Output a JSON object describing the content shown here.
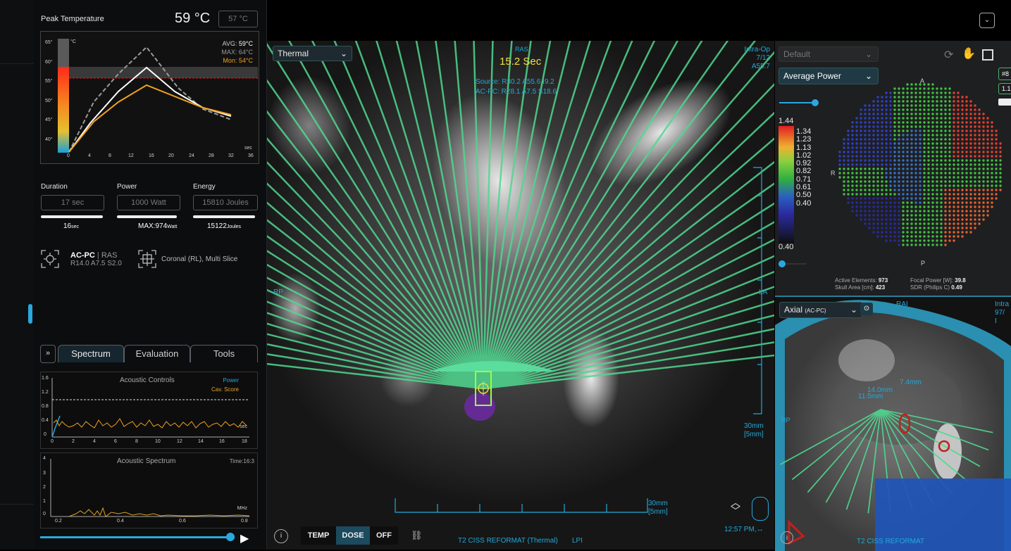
{
  "peak": {
    "title": "Peak Temperature",
    "value": "59 °C",
    "target": "57 °C",
    "avg_label": "AVG:",
    "avg": "59°C",
    "max_label": "MAX:",
    "max": "64°C",
    "mon_label": "Mon:",
    "mon": "54°C",
    "unit": "°C",
    "xunit": "sec",
    "yticks": [
      "65°",
      "60°",
      "55°",
      "50°",
      "45°",
      "40°"
    ],
    "xticks": [
      "0",
      "4",
      "8",
      "12",
      "16",
      "20",
      "24",
      "28",
      "32",
      "36"
    ]
  },
  "metrics": {
    "duration_label": "Duration",
    "duration_box": "17 sec",
    "duration_val": "16",
    "duration_unit": "sec",
    "power_label": "Power",
    "power_box": "1000 Watt",
    "power_val": "MAX:974",
    "power_unit": "Watt",
    "energy_label": "Energy",
    "energy_box": "15810 Joules",
    "energy_val": "15122",
    "energy_unit": "Joules"
  },
  "coords": {
    "acpc": "AC-PC",
    "ras": "RAS",
    "vals": "R14.0 A7.5 S2.0",
    "view": "Coronal (RL), Multi Slice"
  },
  "tabs": {
    "spectrum": "Spectrum",
    "evaluation": "Evaluation",
    "tools": "Tools"
  },
  "acoustic": {
    "title": "Acoustic Controls",
    "power": "Power",
    "cav": "Cav. Score",
    "xunit": "sec",
    "yticks": [
      "1.6",
      "1.2",
      "0.8",
      "0.4",
      "0"
    ],
    "xticks": [
      "0",
      "2",
      "4",
      "6",
      "8",
      "10",
      "12",
      "14",
      "16",
      "18"
    ]
  },
  "spectrum": {
    "title": "Acoustic Spectrum",
    "time": "Time:16:3",
    "unit": "MHz",
    "yticks": [
      "4",
      "3",
      "2",
      "1",
      "0"
    ],
    "xticks": [
      "0.2",
      "0.4",
      "0.6",
      "0.8"
    ]
  },
  "center": {
    "mode": "Thermal",
    "ras": "RAS",
    "timer": "15.2 Sec",
    "source": "Source: R30.2 A55.6 I9.2",
    "acpc": "AC-PC: R28.1 A7.5 S18.6",
    "intra": "Intra-Op",
    "slice": "7/12",
    "a": "A55.7",
    "rp": "RP",
    "la": "LA",
    "scale": "30mm",
    "scale_sub": "[5mm]",
    "scale2": "30mm",
    "scale2_sub": "[5mm]",
    "time": "12:57 PM,↔",
    "btn_temp": "TEMP",
    "btn_dose": "DOSE",
    "btn_off": "OFF",
    "series": "T2 CISS REFORMAT (Thermal)",
    "orient": "LPI"
  },
  "transducer": {
    "preset": "Default",
    "mode": "Average Power",
    "max": "1.44",
    "min": "0.40",
    "scale": [
      "1.34",
      "1.23",
      "1.13",
      "1.02",
      "0.92",
      "0.82",
      "0.71",
      "0.61",
      "0.50",
      "0.40"
    ],
    "a": "A",
    "p": "P",
    "r": "R",
    "badge1": "#8",
    "badge2": "1.1",
    "active_label": "Active Elements:",
    "active": "973",
    "skull_label": "Skull Area [cm]:",
    "skull": "423",
    "focal_label": "Focal Power [W]:",
    "focal": "39.8",
    "sdr_label": "SDR (Philips C)",
    "sdr": "0.49"
  },
  "axial": {
    "mode": "Axial",
    "mode_sub": "(AC-PC)",
    "rai": "RAI",
    "intra": "Intra",
    "n": "97/",
    "i": "I",
    "m1": "14.0mm",
    "m2": "11.5mm",
    "m3": "7.4mm",
    "rp": "RP",
    "series": "T2 CISS REFORMAT"
  },
  "colors": {
    "accent": "#22a9d8",
    "beam": "#4fd88f",
    "orange": "#f0a020"
  }
}
